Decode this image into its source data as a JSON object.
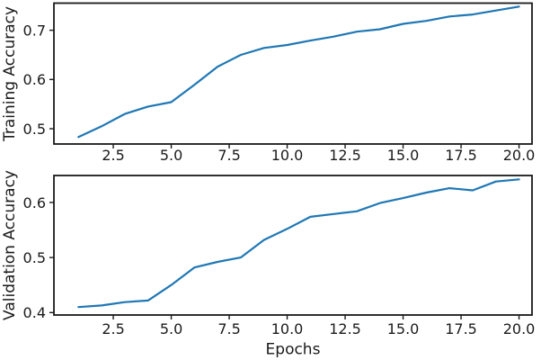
{
  "colors": {
    "line": "#1f77b4",
    "spine": "#1a1a1a",
    "text": "#1a1a1a",
    "background": "#ffffff"
  },
  "chart_data": [
    {
      "type": "line",
      "name": "training-accuracy",
      "title": "",
      "xlabel": "",
      "ylabel": "Training Accuracy",
      "x": [
        1,
        2,
        3,
        4,
        5,
        6,
        7,
        8,
        9,
        10,
        11,
        12,
        13,
        14,
        15,
        16,
        17,
        18,
        19,
        20
      ],
      "series": [
        {
          "name": "Training Accuracy",
          "values": [
            0.483,
            0.505,
            0.53,
            0.545,
            0.554,
            0.589,
            0.626,
            0.65,
            0.664,
            0.67,
            0.679,
            0.687,
            0.697,
            0.702,
            0.713,
            0.719,
            0.728,
            0.732,
            0.74,
            0.748
          ]
        }
      ],
      "xticks": [
        2.5,
        5.0,
        7.5,
        10.0,
        12.5,
        15.0,
        17.5,
        20.0
      ],
      "xtick_labels": [
        "2.5",
        "5.0",
        "7.5",
        "10.0",
        "12.5",
        "15.0",
        "17.5",
        "20.0"
      ],
      "yticks": [
        0.5,
        0.6,
        0.7
      ],
      "ytick_labels": [
        "0.5",
        "0.6",
        "0.7"
      ],
      "xlim": [
        -0.06,
        20.56
      ],
      "ylim": [
        0.469,
        0.755
      ],
      "grid": false,
      "legend": false
    },
    {
      "type": "line",
      "name": "validation-accuracy",
      "title": "",
      "xlabel": "Epochs",
      "ylabel": "Validation Accuracy",
      "x": [
        1,
        2,
        3,
        4,
        5,
        6,
        7,
        8,
        9,
        10,
        11,
        12,
        13,
        14,
        15,
        16,
        17,
        18,
        19,
        20
      ],
      "series": [
        {
          "name": "Validation Accuracy",
          "values": [
            0.41,
            0.413,
            0.419,
            0.422,
            0.45,
            0.482,
            0.492,
            0.5,
            0.532,
            0.552,
            0.574,
            0.579,
            0.584,
            0.599,
            0.608,
            0.618,
            0.626,
            0.622,
            0.638,
            0.642
          ]
        }
      ],
      "xticks": [
        2.5,
        5.0,
        7.5,
        10.0,
        12.5,
        15.0,
        17.5,
        20.0
      ],
      "xtick_labels": [
        "2.5",
        "5.0",
        "7.5",
        "10.0",
        "12.5",
        "15.0",
        "17.5",
        "20.0"
      ],
      "yticks": [
        0.4,
        0.5,
        0.6
      ],
      "ytick_labels": [
        "0.4",
        "0.5",
        "0.6"
      ],
      "xlim": [
        -0.06,
        20.56
      ],
      "ylim": [
        0.3956,
        0.649
      ],
      "grid": false,
      "legend": false
    }
  ]
}
